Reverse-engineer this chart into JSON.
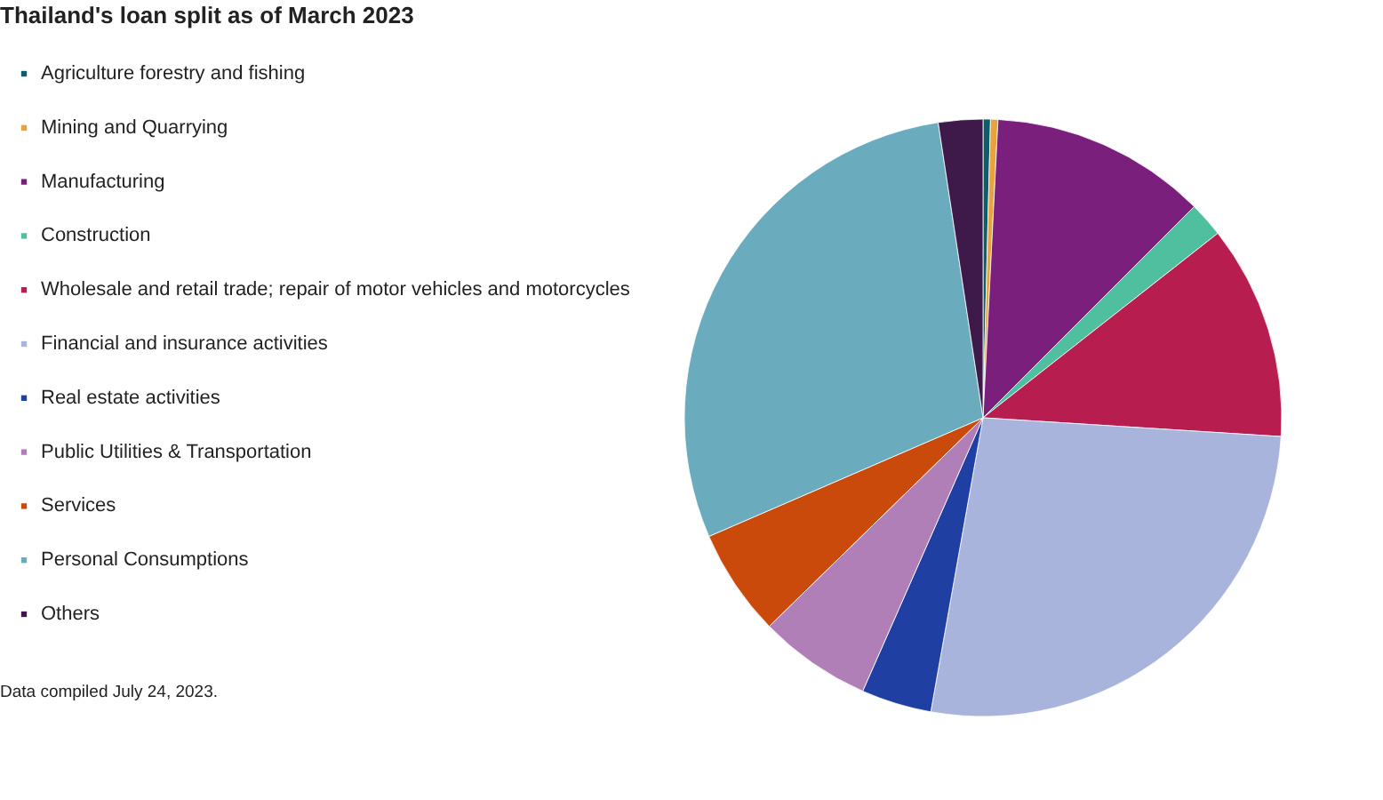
{
  "chart_data": {
    "type": "pie",
    "title": "Thailand's loan split as of March 2023",
    "categories": [
      "Agriculture forestry and fishing",
      "Mining and Quarrying",
      "Manufacturing",
      "Construction",
      "Wholesale and retail trade; repair of motor vehicles and motorcycles",
      "Financial and insurance activities",
      "Real estate activities",
      "Public Utilities & Transportation",
      "Services",
      "Personal Consumptions",
      "Others"
    ],
    "values": [
      0.4,
      0.4,
      11.7,
      1.9,
      11.6,
      26.8,
      3.8,
      6.1,
      5.8,
      29.1,
      2.4
    ],
    "colors": [
      "#0f5c6b",
      "#e8a33d",
      "#7b1f7d",
      "#4fbf9f",
      "#b81d50",
      "#a9b4dd",
      "#1f3fa3",
      "#b07fb8",
      "#c94a0a",
      "#6aabbd",
      "#3d1a4a"
    ],
    "legend": "left",
    "annotations": [
      "Data compiled July 24, 2023."
    ]
  }
}
